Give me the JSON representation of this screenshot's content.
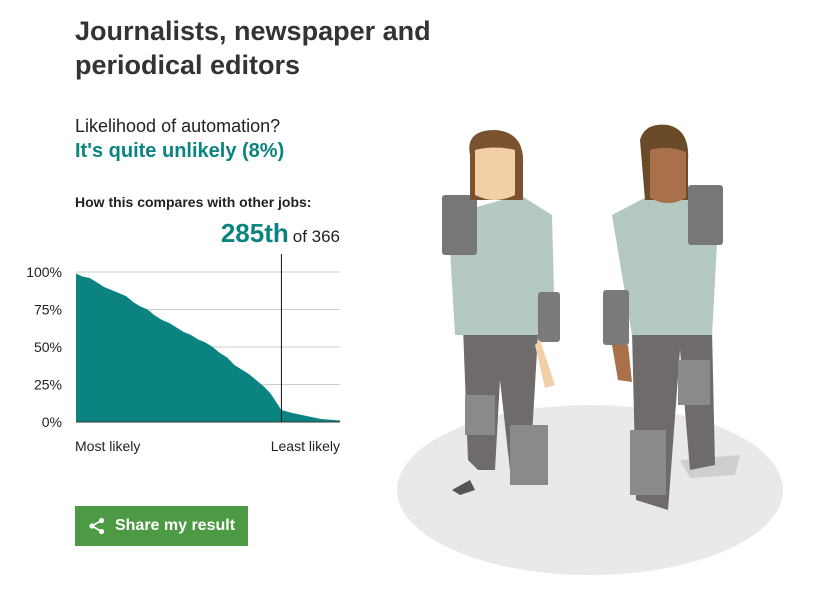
{
  "job_title": "Journalists, newspaper and periodical editors",
  "automation_question": "Likelihood of automation?",
  "automation_answer": "It's quite unlikely (8%)",
  "compare_label": "How this compares with other jobs:",
  "rank": {
    "position": "285th",
    "of_text": "of 366"
  },
  "x_axis": {
    "left_label": "Most likely",
    "right_label": "Least likely"
  },
  "share_button": {
    "label": "Share my result",
    "icon": "share-icon"
  },
  "colors": {
    "accent": "#0b8481",
    "share": "#4c9a43"
  },
  "chart_data": {
    "type": "area",
    "title": "",
    "xlabel": "",
    "ylabel": "",
    "yticks": [
      "0%",
      "25%",
      "50%",
      "75%",
      "100%"
    ],
    "tick_values": [
      0,
      25,
      50,
      75,
      100
    ],
    "ylim": [
      0,
      100
    ],
    "xlim": [
      1,
      366
    ],
    "grid": true,
    "marker_rank": 285,
    "x": [
      1,
      10,
      20,
      30,
      40,
      50,
      60,
      70,
      80,
      90,
      100,
      110,
      120,
      130,
      140,
      150,
      160,
      170,
      180,
      190,
      200,
      210,
      220,
      230,
      240,
      250,
      260,
      270,
      285,
      300,
      320,
      340,
      366
    ],
    "y": [
      99,
      97,
      96,
      93,
      90,
      88,
      86,
      84,
      80,
      77,
      75,
      71,
      68,
      66,
      63,
      60,
      58,
      55,
      53,
      50,
      46,
      43,
      38,
      35,
      32,
      28,
      24,
      19,
      8,
      6,
      4,
      2,
      1
    ]
  }
}
